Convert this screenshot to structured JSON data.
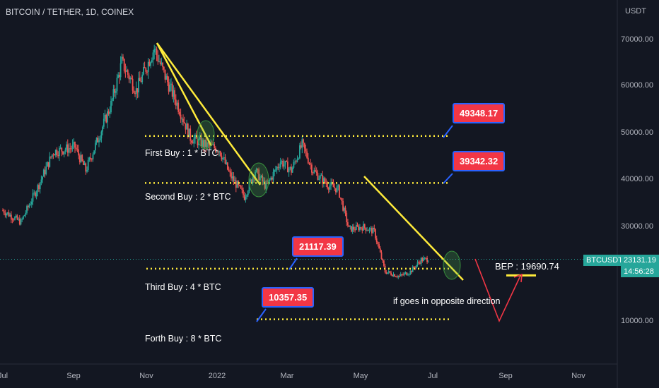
{
  "header": {
    "symbol_title": "BITCOIN / TETHER, 1D, COINEX",
    "currency": "USDT"
  },
  "price_axis": {
    "ticks": [
      "70000.00",
      "60000.00",
      "50000.00",
      "40000.00",
      "30000.00",
      "10000.00"
    ],
    "last_price": "23131.19",
    "countdown": "14:56:28",
    "symbol_badge": "BTCUSDT"
  },
  "time_axis": {
    "ticks": [
      "Jul",
      "Sep",
      "Nov",
      "2022",
      "Mar",
      "May",
      "Jul",
      "Sep",
      "Nov"
    ]
  },
  "callouts": {
    "level1": "49348.17",
    "level2": "39342.32",
    "level3": "21117.39",
    "level4": "10357.35"
  },
  "notes": {
    "buy1": "First Buy : 1 * BTC",
    "buy2": "Second Buy : 2 * BTC",
    "buy3": "Third Buy : 4 * BTC",
    "buy4": "Forth Buy : 8 * BTC",
    "bep": "BEP : 19690.74",
    "opposite": "if goes in opposite direction"
  },
  "colors": {
    "background": "#131722",
    "bull": "#26a69a",
    "bear": "#ef5350",
    "trendline": "#ffeb3b",
    "callout_fill": "#f23645",
    "callout_border": "#2962ff",
    "projection": "#f23645"
  },
  "chart_data": {
    "type": "candlestick",
    "title": "BITCOIN / TETHER, 1D, COINEX",
    "x_ticks": [
      "Jul",
      "Sep",
      "Nov",
      "2022",
      "Mar",
      "May",
      "Jul",
      "Sep",
      "Nov"
    ],
    "y_unit": "USDT",
    "ylim": [
      3000,
      76000
    ],
    "grid": false,
    "anchors": [
      {
        "month": 0.0,
        "price": 33500
      },
      {
        "month": 0.5,
        "price": 31000
      },
      {
        "month": 1.0,
        "price": 39000
      },
      {
        "month": 1.4,
        "price": 46000
      },
      {
        "month": 2.0,
        "price": 47000
      },
      {
        "month": 2.3,
        "price": 42000
      },
      {
        "month": 2.6,
        "price": 48000
      },
      {
        "month": 3.0,
        "price": 56000
      },
      {
        "month": 3.3,
        "price": 65000
      },
      {
        "month": 3.7,
        "price": 59000
      },
      {
        "month": 4.2,
        "price": 68000
      },
      {
        "month": 4.5,
        "price": 62000
      },
      {
        "month": 4.9,
        "price": 55000
      },
      {
        "month": 5.2,
        "price": 49000
      },
      {
        "month": 5.6,
        "price": 47500
      },
      {
        "month": 6.0,
        "price": 46500
      },
      {
        "month": 6.3,
        "price": 41000
      },
      {
        "month": 6.7,
        "price": 36500
      },
      {
        "month": 7.0,
        "price": 42000
      },
      {
        "month": 7.3,
        "price": 38500
      },
      {
        "month": 7.7,
        "price": 44000
      },
      {
        "month": 8.0,
        "price": 42000
      },
      {
        "month": 8.3,
        "price": 47500
      },
      {
        "month": 8.6,
        "price": 42000
      },
      {
        "month": 9.0,
        "price": 39000
      },
      {
        "month": 9.3,
        "price": 38000
      },
      {
        "month": 9.6,
        "price": 29500
      },
      {
        "month": 10.0,
        "price": 30000
      },
      {
        "month": 10.3,
        "price": 29000
      },
      {
        "month": 10.6,
        "price": 20500
      },
      {
        "month": 11.0,
        "price": 19500
      },
      {
        "month": 11.3,
        "price": 20500
      },
      {
        "month": 11.6,
        "price": 23000
      },
      {
        "month": 11.8,
        "price": 23131
      }
    ],
    "levels": [
      {
        "label": "First Buy : 1 * BTC",
        "price": 49348.17
      },
      {
        "label": "Second Buy : 2 * BTC",
        "price": 39342.32
      },
      {
        "label": "Third Buy : 4 * BTC",
        "price": 21117.39
      },
      {
        "label": "Forth Buy : 8 * BTC",
        "price": 10357.35
      }
    ],
    "bep": 19690.74,
    "last_price": 23131.19
  }
}
